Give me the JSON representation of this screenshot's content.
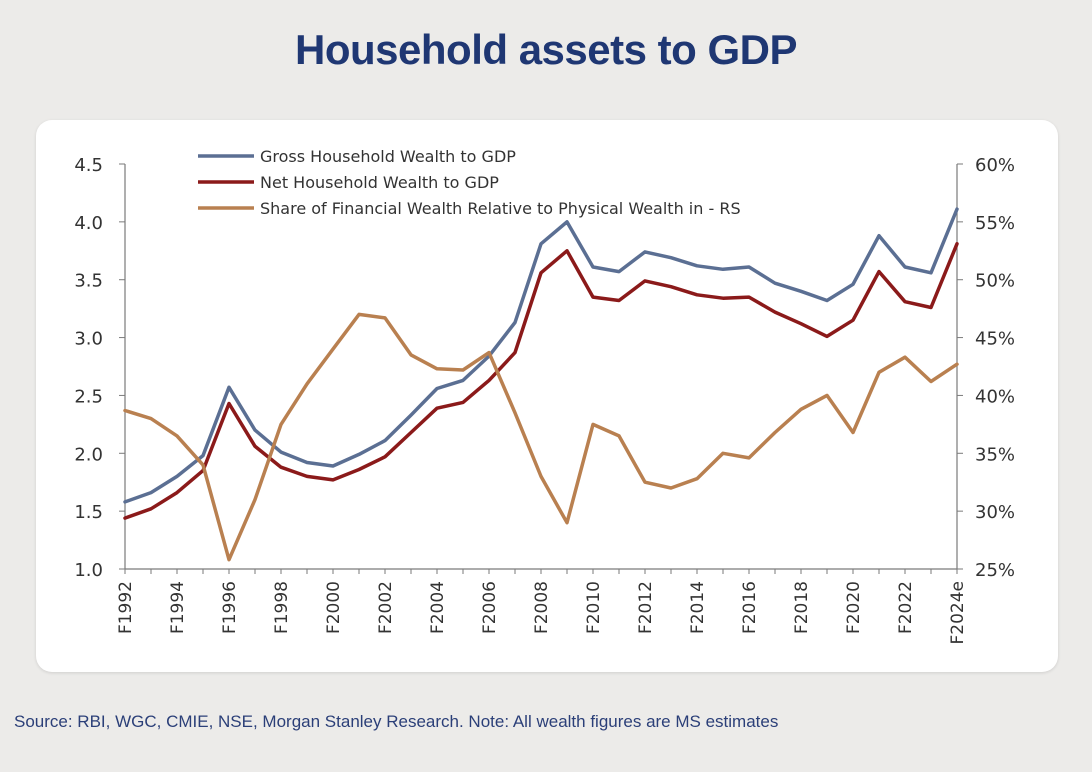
{
  "title": "Household assets to GDP",
  "source": "Source: RBI, WGC, CMIE, NSE, Morgan Stanley Research. Note: All wealth figures are MS estimates",
  "chart_data": {
    "type": "line",
    "x": [
      "F1992",
      "F1993",
      "F1994",
      "F1995",
      "F1996",
      "F1997",
      "F1998",
      "F1999",
      "F2000",
      "F2001",
      "F2002",
      "F2003",
      "F2004",
      "F2005",
      "F2006",
      "F2007",
      "F2008",
      "F2009",
      "F2010",
      "F2011",
      "F2012",
      "F2013",
      "F2014",
      "F2015",
      "F2016",
      "F2017",
      "F2018",
      "F2019",
      "F2020",
      "F2021",
      "F2022",
      "F2023",
      "F2024e"
    ],
    "x_tick_labels": [
      "F1992",
      "F1994",
      "F1996",
      "F1998",
      "F2000",
      "F2002",
      "F2004",
      "F2006",
      "F2008",
      "F2010",
      "F2012",
      "F2014",
      "F2016",
      "F2018",
      "F2020",
      "F2022",
      "F2024e"
    ],
    "y_left": {
      "ylim": [
        1.0,
        4.5
      ],
      "ticks": [
        "4.5",
        "4.0",
        "3.5",
        "3.0",
        "2.5",
        "2.0",
        "1.5",
        "1.0"
      ]
    },
    "y_right": {
      "ylim": [
        25,
        60
      ],
      "ticks": [
        "60%",
        "55%",
        "50%",
        "45%",
        "40%",
        "35%",
        "30%",
        "25%"
      ]
    },
    "legend_position": "top-left",
    "grid": false,
    "series": [
      {
        "name": "Gross Household Wealth to GDP",
        "axis": "left",
        "color": "#5b6f93",
        "values": [
          1.58,
          1.66,
          1.8,
          1.98,
          2.57,
          2.2,
          2.01,
          1.92,
          1.89,
          1.99,
          2.11,
          2.33,
          2.56,
          2.63,
          2.84,
          3.13,
          3.81,
          4.0,
          3.61,
          3.57,
          3.74,
          3.69,
          3.62,
          3.59,
          3.61,
          3.47,
          3.4,
          3.32,
          3.46,
          3.88,
          3.61,
          3.56,
          4.11
        ]
      },
      {
        "name": "Net Household Wealth to GDP",
        "axis": "left",
        "color": "#8b1a1a",
        "values": [
          1.44,
          1.52,
          1.66,
          1.85,
          2.43,
          2.06,
          1.88,
          1.8,
          1.77,
          1.86,
          1.97,
          2.18,
          2.39,
          2.44,
          2.63,
          2.87,
          3.56,
          3.75,
          3.35,
          3.32,
          3.49,
          3.44,
          3.37,
          3.34,
          3.35,
          3.22,
          3.12,
          3.01,
          3.15,
          3.57,
          3.31,
          3.26,
          3.81
        ]
      },
      {
        "name": "Share of Financial Wealth Relative to Physical Wealth in - RS",
        "axis": "right",
        "color": "#b98050",
        "values": [
          38.7,
          38.0,
          36.5,
          34.0,
          25.8,
          31.0,
          37.5,
          41.0,
          44.0,
          47.0,
          46.7,
          43.5,
          42.3,
          42.2,
          43.7,
          38.5,
          33.0,
          29.0,
          37.5,
          36.5,
          32.5,
          32.0,
          32.8,
          35.0,
          34.6,
          36.8,
          38.8,
          40.0,
          36.8,
          42.0,
          43.3,
          41.2,
          42.7
        ]
      }
    ]
  }
}
